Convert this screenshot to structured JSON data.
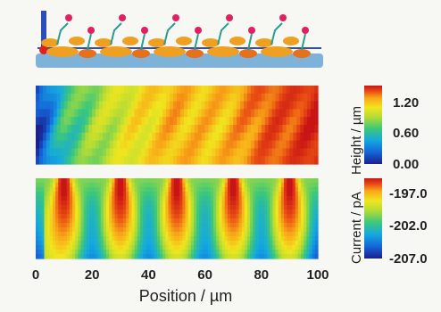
{
  "chart_data": [
    {
      "type": "heatmap",
      "panel": "top",
      "x": [
        0,
        10,
        20,
        30,
        40,
        50,
        60,
        70,
        80,
        90,
        100
      ],
      "z": [
        0.05,
        0.45,
        0.6,
        0.75,
        0.85,
        0.95,
        0.9,
        0.95,
        1.1,
        1.15,
        1.25
      ],
      "colorbar": {
        "ticks": [
          "1.20",
          "0.60",
          "0.00"
        ],
        "range": [
          0.0,
          1.3
        ]
      }
    },
    {
      "type": "heatmap",
      "panel": "bottom",
      "x": [
        0,
        10,
        20,
        30,
        40,
        50,
        60,
        70,
        80,
        90,
        100
      ],
      "band_centers": [
        10,
        30,
        50,
        70,
        90
      ],
      "colorbar": {
        "ticks": [
          "-197.0",
          "-202.0",
          "-207.0"
        ],
        "range": [
          -207.0,
          -197.0
        ]
      }
    }
  ],
  "axes": {
    "xlabel": "Position / µm",
    "xticks": [
      "0",
      "20",
      "40",
      "60",
      "80",
      "100"
    ],
    "colorbar_label": "Current / pA",
    "colorbar_label2": "Height / µm"
  },
  "colors": {
    "map": [
      "#1a1f8c",
      "#1565d8",
      "#14a8e0",
      "#3cc87a",
      "#b4dc34",
      "#f0e61e",
      "#f8a818",
      "#e84a14",
      "#c81414"
    ],
    "substrate": "#7fb2d9",
    "electrode": "#2a4fb8",
    "protein": "#f0a020",
    "marker": "#e02060"
  }
}
